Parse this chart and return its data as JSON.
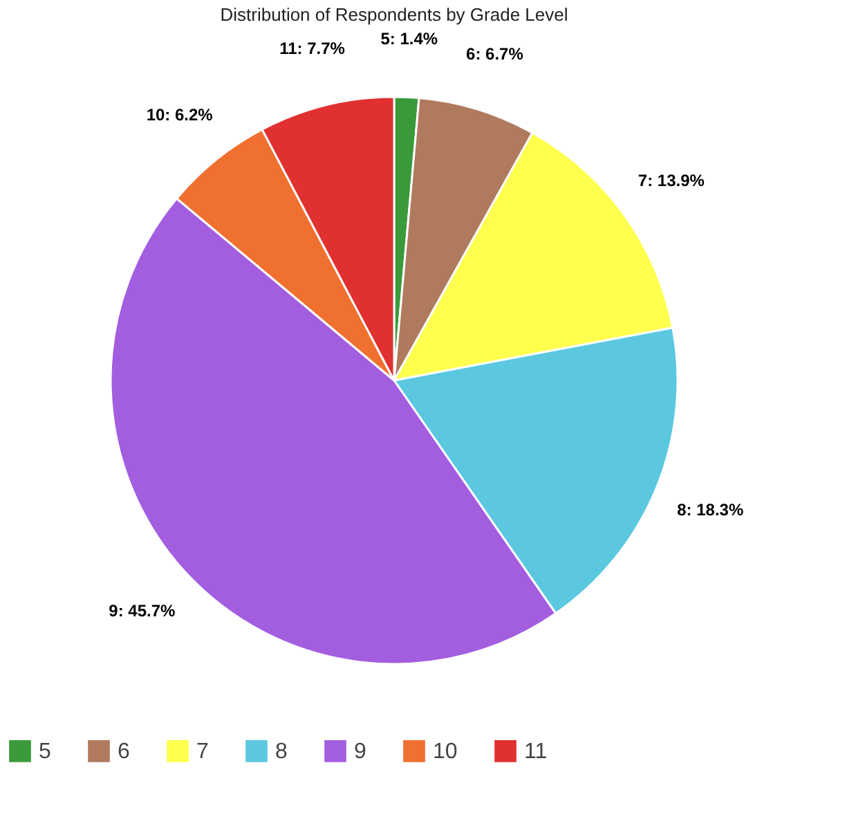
{
  "chart_data": {
    "type": "pie",
    "title": "Distribution of Respondents by Grade Level",
    "categories": [
      "5",
      "6",
      "7",
      "8",
      "9",
      "10",
      "11"
    ],
    "values": [
      1.4,
      6.7,
      13.9,
      18.3,
      45.7,
      6.2,
      7.7
    ],
    "value_labels": [
      "5: 1.4%",
      "6: 6.7%",
      "7: 13.9%",
      "8: 18.3%",
      "9: 45.7%",
      "10: 6.2%",
      "11: 7.7%"
    ],
    "colors": [
      "#3a9a3a",
      "#b07a5e",
      "#ffff4d",
      "#5bc8e0",
      "#a35ee0",
      "#f07030",
      "#e03030"
    ],
    "legend": "bottom"
  }
}
